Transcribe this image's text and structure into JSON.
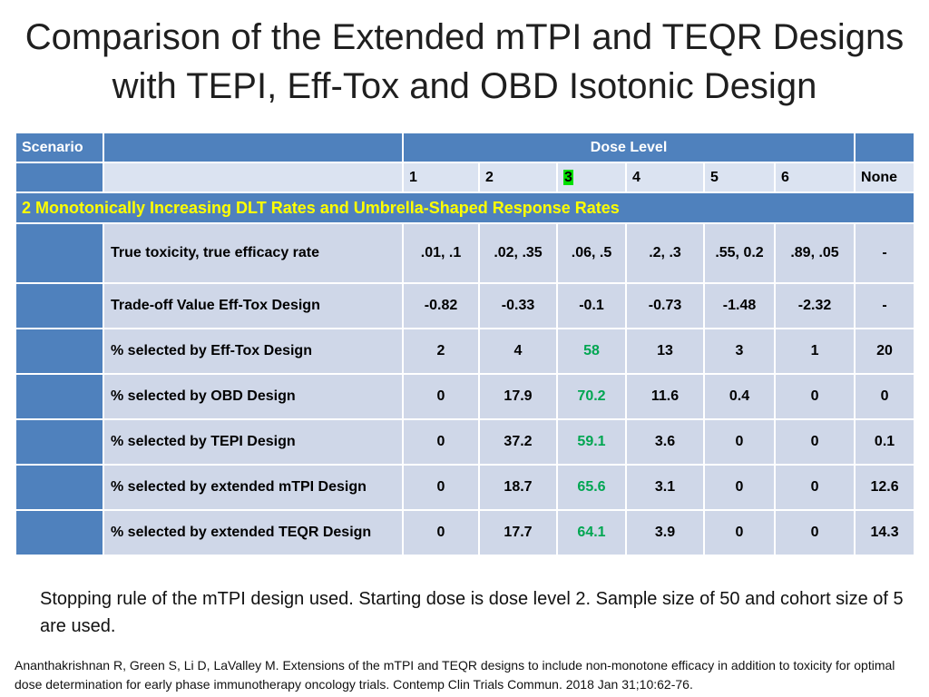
{
  "title_line1": "Comparison of the Extended mTPI and TEQR Designs",
  "title_line2": "with TEPI, Eff-Tox and OBD Isotonic Design",
  "table": {
    "scenario_label": "Scenario",
    "dose_level_label": "Dose Level",
    "dose_levels": [
      "1",
      "2",
      "3",
      "4",
      "5",
      "6",
      "None"
    ],
    "section_label": "2 Monotonically Increasing DLT Rates and Umbrella-Shaped Response Rates",
    "rows": [
      {
        "label": "True toxicity, true efficacy rate",
        "values": [
          ".01, .1",
          ".02, .35",
          ".06, .5",
          ".2, .3",
          ".55, 0.2",
          ".89, .05",
          "-"
        ]
      },
      {
        "label": "Trade-off Value Eff-Tox Design",
        "values": [
          "-0.82",
          "-0.33",
          "-0.1",
          "-0.73",
          "-1.48",
          "-2.32",
          "-"
        ]
      },
      {
        "label": "% selected by Eff-Tox Design",
        "values": [
          "2",
          "4",
          "58",
          "13",
          "3",
          "1",
          "20"
        ]
      },
      {
        "label": "% selected by OBD Design",
        "values": [
          "0",
          "17.9",
          "70.2",
          "11.6",
          "0.4",
          "0",
          "0"
        ]
      },
      {
        "label": "% selected by TEPI Design",
        "values": [
          "0",
          "37.2",
          "59.1",
          "3.6",
          "0",
          "0",
          "0.1"
        ]
      },
      {
        "label": "% selected by extended mTPI Design",
        "values": [
          "0",
          "18.7",
          "65.6",
          "3.1",
          "0",
          "0",
          "12.6"
        ]
      },
      {
        "label": "% selected by extended TEQR Design",
        "values": [
          "0",
          "17.7",
          "64.1",
          "3.9",
          "0",
          "0",
          "14.3"
        ]
      }
    ]
  },
  "note": "Stopping rule of the mTPI design used. Starting dose is dose level 2. Sample size of 50 and cohort size of 5 are used.",
  "citation": "Ananthakrishnan R, Green S, Li D, LaValley M. Extensions of the mTPI and TEQR designs to include non-monotone efficacy in addition to toxicity for optimal dose determination for early phase immunotherapy oncology trials. Contemp Clin Trials Commun. 2018 Jan 31;10:62-76.",
  "colors": {
    "header_blue": "#4f81bd",
    "light_row": "#cfd7e8",
    "section_text": "#ffff00",
    "highlight_green": "#00e000",
    "highlight_text": "#00a651"
  }
}
